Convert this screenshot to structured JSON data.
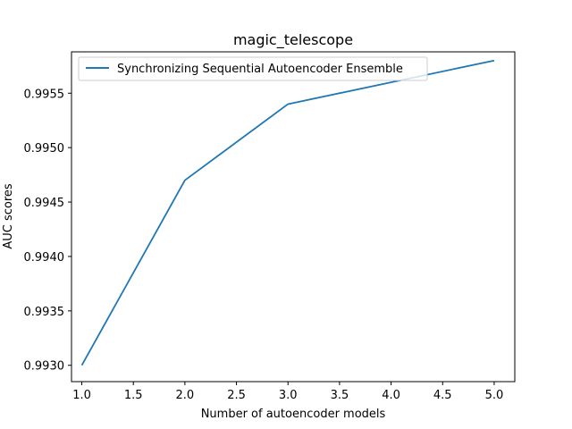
{
  "chart_data": {
    "type": "line",
    "title": "magic_telescope",
    "xlabel": "Number of autoencoder models",
    "ylabel": "AUC scores",
    "xlim": [
      0.9,
      5.2
    ],
    "ylim": [
      0.99285,
      0.99588
    ],
    "x_ticks": [
      1.0,
      1.5,
      2.0,
      2.5,
      3.0,
      3.5,
      4.0,
      4.5,
      5.0
    ],
    "x_tick_labels": [
      "1.0",
      "1.5",
      "2.0",
      "2.5",
      "3.0",
      "3.5",
      "4.0",
      "4.5",
      "5.0"
    ],
    "y_ticks": [
      0.993,
      0.9935,
      0.994,
      0.9945,
      0.995,
      0.9955
    ],
    "y_tick_labels": [
      "0.9930",
      "0.9935",
      "0.9940",
      "0.9945",
      "0.9950",
      "0.9955"
    ],
    "grid": false,
    "legend_position": "top-left",
    "series": [
      {
        "name": "Synchronizing Sequential Autoencoder Ensemble",
        "color": "#1f77b4",
        "x": [
          1,
          2,
          3,
          5
        ],
        "y": [
          0.993,
          0.9947,
          0.9954,
          0.9958
        ]
      }
    ]
  }
}
